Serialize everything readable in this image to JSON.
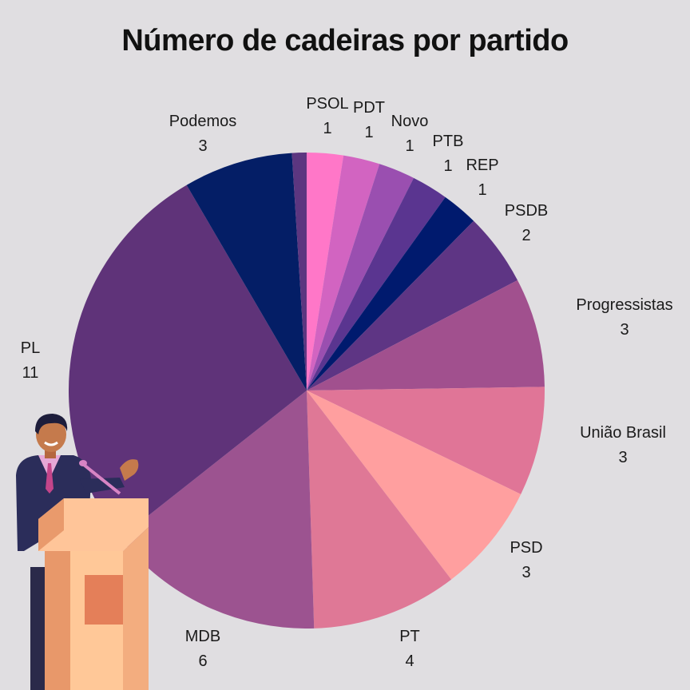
{
  "chart_data": {
    "type": "pie",
    "title": "Número de cadeiras por partido",
    "slices": [
      {
        "label": "PSOL",
        "value": 1,
        "color": "#ff77c8"
      },
      {
        "label": "PDT",
        "value": 1,
        "color": "#d264c1"
      },
      {
        "label": "Novo",
        "value": 1,
        "color": "#9a4fb0"
      },
      {
        "label": "PTB",
        "value": 1,
        "color": "#5a3590"
      },
      {
        "label": "REP",
        "value": 1,
        "color": "#001a6e"
      },
      {
        "label": "PSDB",
        "value": 2,
        "color": "#5e3584"
      },
      {
        "label": "Progressistas",
        "value": 3,
        "color": "#a1508e"
      },
      {
        "label": "União Brasil",
        "value": 3,
        "color": "#e07597"
      },
      {
        "label": "PSD",
        "value": 3,
        "color": "#ff9f9f"
      },
      {
        "label": "PT",
        "value": 4,
        "color": "#df7896"
      },
      {
        "label": "MDB",
        "value": 6,
        "color": "#9c5390"
      },
      {
        "label": "PL",
        "value": 11,
        "color": "#5f3379"
      },
      {
        "label": "Podemos",
        "value": 3,
        "color": "#041e66"
      },
      {
        "label": "",
        "value": 0.4,
        "color": "#5c3680"
      }
    ],
    "start": "top",
    "direction": "clockwise",
    "legend": "none"
  }
}
